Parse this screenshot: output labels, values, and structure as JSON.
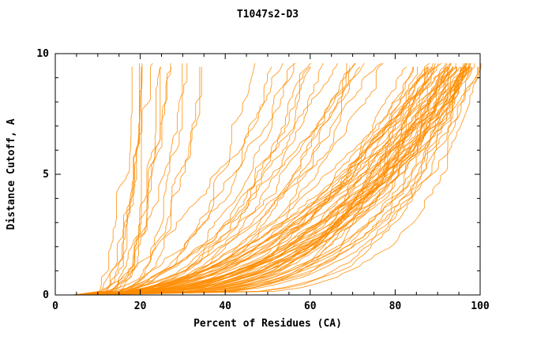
{
  "window": {
    "title": "T1047s2-D3"
  },
  "chart_data": {
    "type": "line",
    "title": "T1047s2-D3",
    "xlabel": "Percent of Residues (CA)",
    "ylabel": "Distance Cutoff, A",
    "xlim": [
      0,
      100
    ],
    "ylim": [
      0,
      10
    ],
    "x_major_ticks": [
      0,
      20,
      40,
      60,
      80,
      100
    ],
    "x_minor_step": 5,
    "y_major_ticks": [
      0,
      5,
      10
    ],
    "y_minor_step": 1,
    "grid": false,
    "legend": "none",
    "line_color": "#ff8c00",
    "frame_color": "#000000",
    "curve_param_legend": [
      "x_at_y0",
      "x_at_y10",
      "shape_power",
      "seed"
    ],
    "curves": [
      [
        5,
        16,
        0.15,
        23
      ],
      [
        6,
        18,
        0.17,
        24
      ],
      [
        5,
        20,
        0.22,
        11
      ],
      [
        6,
        22,
        0.18,
        12
      ],
      [
        5,
        24,
        0.25,
        13
      ],
      [
        7,
        26,
        0.2,
        14
      ],
      [
        6,
        28,
        0.24,
        15
      ],
      [
        5,
        30,
        0.28,
        16
      ],
      [
        8,
        32,
        0.22,
        17
      ],
      [
        6,
        34,
        0.26,
        18
      ],
      [
        7,
        36,
        0.3,
        19
      ],
      [
        5,
        21,
        0.2,
        20
      ],
      [
        6,
        25,
        0.23,
        21
      ],
      [
        7,
        29,
        0.27,
        22
      ],
      [
        5,
        45,
        0.3,
        31
      ],
      [
        6,
        50,
        0.35,
        32
      ],
      [
        7,
        55,
        0.4,
        33
      ],
      [
        5,
        60,
        0.32,
        34
      ],
      [
        6,
        62,
        0.38,
        35
      ],
      [
        8,
        65,
        0.45,
        36
      ],
      [
        5,
        68,
        0.35,
        37
      ],
      [
        6,
        70,
        0.42,
        38
      ],
      [
        7,
        72,
        0.36,
        39
      ],
      [
        5,
        75,
        0.4,
        40
      ],
      [
        6,
        78,
        0.44,
        41
      ],
      [
        8,
        80,
        0.38,
        42
      ],
      [
        5,
        52,
        0.5,
        43
      ],
      [
        6,
        58,
        0.48,
        44
      ],
      [
        7,
        64,
        0.5,
        45
      ],
      [
        5,
        70,
        0.5,
        46
      ],
      [
        6,
        74,
        0.46,
        47
      ],
      [
        7,
        66,
        0.33,
        48
      ],
      [
        5,
        85,
        0.3,
        51
      ],
      [
        6,
        86,
        0.35,
        52
      ],
      [
        7,
        87,
        0.4,
        53
      ],
      [
        5,
        88,
        0.28,
        54
      ],
      [
        6,
        88,
        0.45,
        55
      ],
      [
        7,
        89,
        0.32,
        56
      ],
      [
        5,
        90,
        0.38,
        57
      ],
      [
        6,
        90,
        0.25,
        58
      ],
      [
        7,
        91,
        0.42,
        59
      ],
      [
        5,
        91,
        0.3,
        60
      ],
      [
        6,
        92,
        0.35,
        61
      ],
      [
        7,
        92,
        0.48,
        62
      ],
      [
        5,
        93,
        0.27,
        63
      ],
      [
        6,
        93,
        0.4,
        64
      ],
      [
        7,
        94,
        0.33,
        65
      ],
      [
        5,
        94,
        0.45,
        66
      ],
      [
        6,
        95,
        0.29,
        67
      ],
      [
        7,
        95,
        0.38,
        68
      ],
      [
        5,
        95,
        0.5,
        69
      ],
      [
        6,
        96,
        0.24,
        70
      ],
      [
        7,
        96,
        0.36,
        71
      ],
      [
        5,
        96,
        0.44,
        72
      ],
      [
        6,
        97,
        0.3,
        73
      ],
      [
        7,
        97,
        0.4,
        74
      ],
      [
        5,
        97,
        0.22,
        75
      ],
      [
        6,
        98,
        0.34,
        76
      ],
      [
        7,
        98,
        0.46,
        77
      ],
      [
        5,
        98,
        0.26,
        78
      ],
      [
        6,
        98,
        0.38,
        79
      ],
      [
        7,
        99,
        0.31,
        80
      ],
      [
        5,
        99,
        0.42,
        81
      ],
      [
        6,
        99,
        0.23,
        82
      ],
      [
        7,
        99,
        0.36,
        83
      ],
      [
        5,
        100,
        0.28,
        84
      ],
      [
        6,
        100,
        0.4,
        85
      ],
      [
        7,
        100,
        0.2,
        86
      ],
      [
        5,
        100,
        0.33,
        87
      ],
      [
        6,
        100,
        0.47,
        88
      ],
      [
        7,
        100,
        0.25,
        89
      ],
      [
        5,
        100,
        0.37,
        90
      ],
      [
        6,
        99,
        0.19,
        91
      ],
      [
        7,
        98,
        0.43,
        92
      ],
      [
        5,
        97,
        0.35,
        93
      ],
      [
        6,
        96,
        0.27,
        94
      ],
      [
        7,
        95,
        0.41,
        95
      ],
      [
        5,
        94,
        0.24,
        96
      ],
      [
        6,
        93,
        0.37,
        97
      ],
      [
        7,
        92,
        0.29,
        98
      ],
      [
        5,
        91,
        0.44,
        99
      ],
      [
        6,
        90,
        0.21,
        100
      ],
      [
        7,
        96,
        0.32,
        101
      ],
      [
        5,
        98,
        0.39,
        102
      ],
      [
        6,
        100,
        0.3,
        103
      ],
      [
        7,
        99,
        0.26,
        104
      ],
      [
        5,
        95,
        0.34,
        105
      ],
      [
        6,
        97,
        0.45,
        106
      ],
      [
        7,
        93,
        0.28,
        107
      ],
      [
        5,
        92,
        0.36,
        108
      ],
      [
        6,
        94,
        0.48,
        109
      ],
      [
        7,
        100,
        0.18,
        110
      ]
    ]
  }
}
